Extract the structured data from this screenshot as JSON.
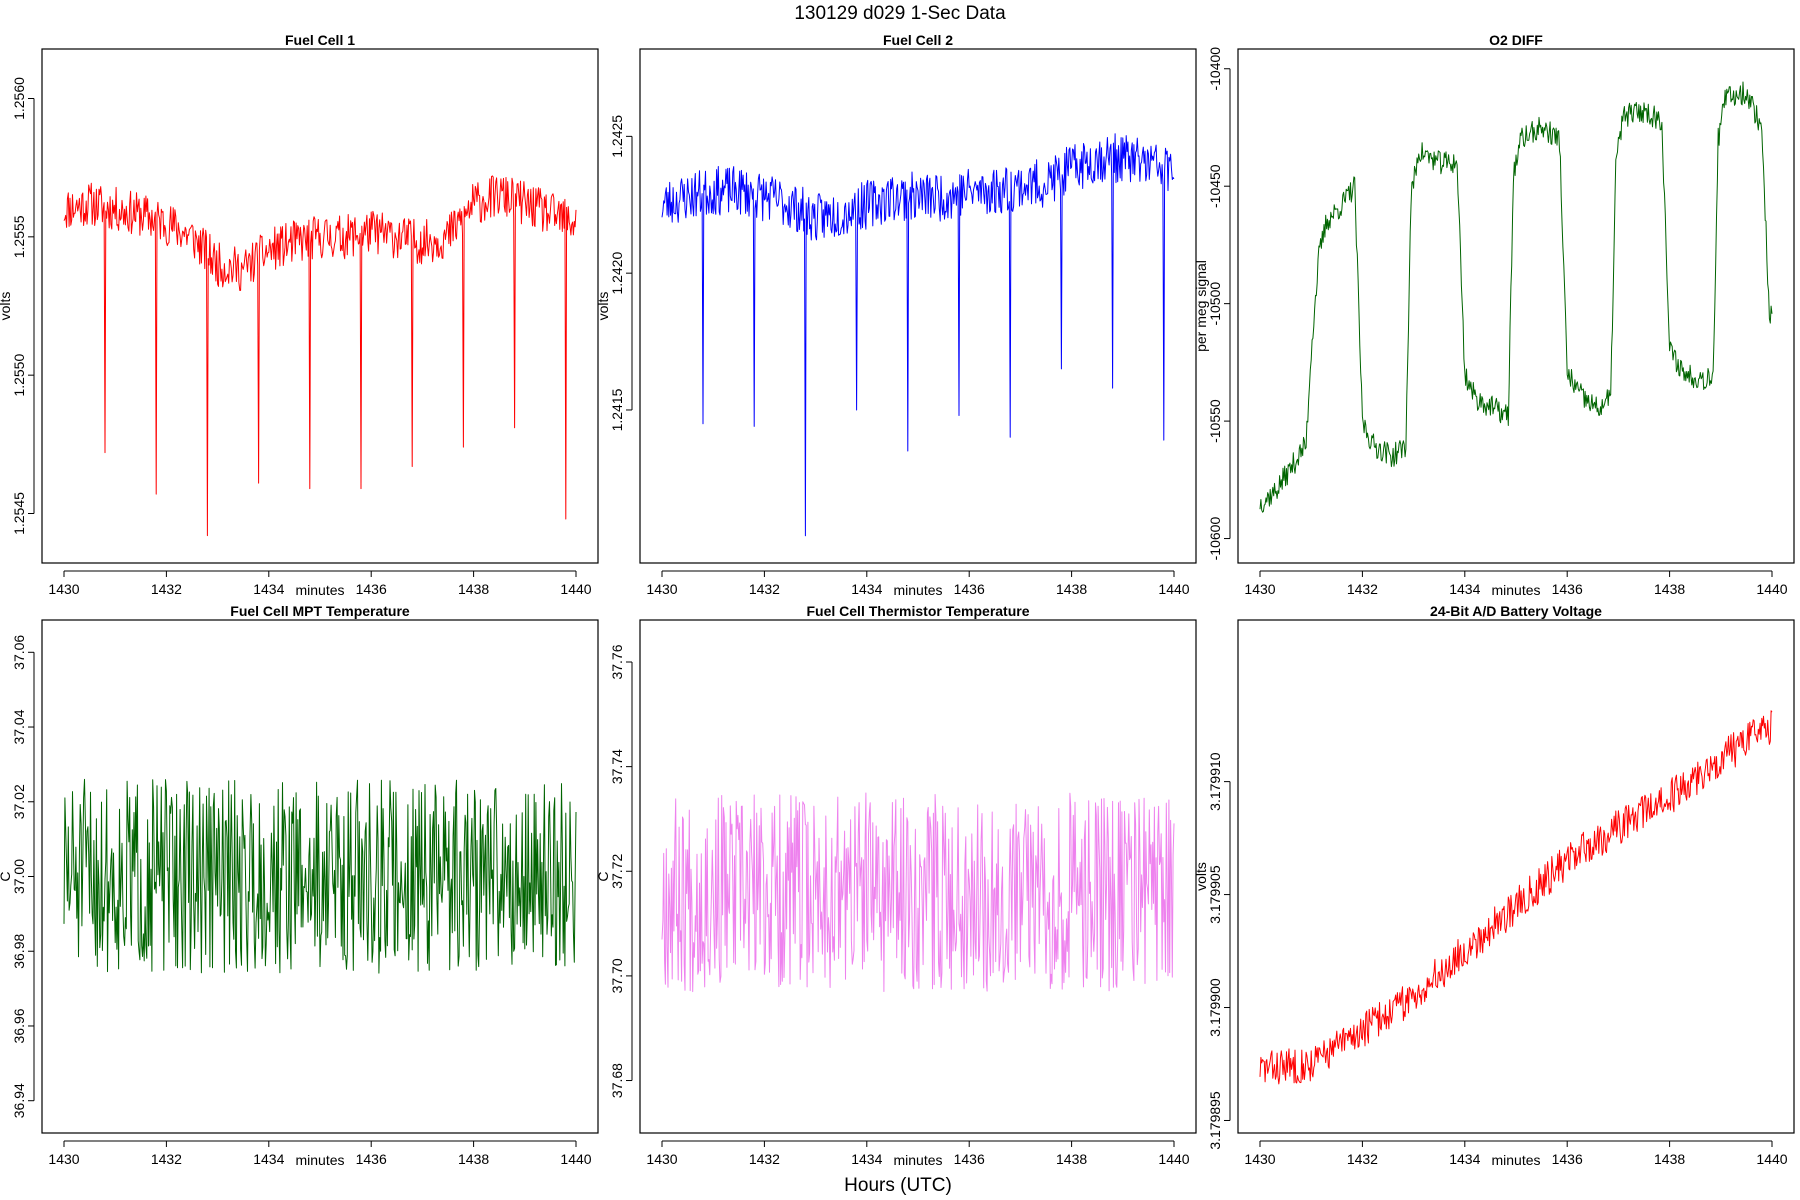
{
  "figure": {
    "title": "130129   d029   1-Sec Data",
    "bottom_label": "Hours (UTC)"
  },
  "chart_data": [
    {
      "id": "fc1",
      "type": "line",
      "title": "Fuel Cell 1",
      "xlabel": "minutes",
      "ylabel": "volts",
      "color": "#ff0000",
      "xlim": [
        1430,
        1440
      ],
      "ylim": [
        1.25435,
        1.25615
      ],
      "xticks": [
        "1430",
        "1432",
        "1434",
        "1436",
        "1438",
        "1440"
      ],
      "xtick_values": [
        1430,
        1432,
        1434,
        1436,
        1438,
        1440
      ],
      "yticks": [
        "1.2545",
        "1.2550",
        "1.2555",
        "1.2560"
      ],
      "ytick_values": [
        1.2545,
        1.255,
        1.2555,
        1.256
      ],
      "x": [
        1430,
        1430.5,
        1431,
        1431.5,
        1432,
        1432.5,
        1433,
        1433.5,
        1434,
        1434.5,
        1435,
        1435.5,
        1436,
        1436.5,
        1437,
        1437.5,
        1438,
        1438.5,
        1439,
        1439.5,
        1440
      ],
      "y": [
        1.2556,
        1.25562,
        1.2556,
        1.25558,
        1.25555,
        1.2555,
        1.2554,
        1.25538,
        1.25545,
        1.25548,
        1.2555,
        1.2555,
        1.25552,
        1.2555,
        1.25548,
        1.2555,
        1.25562,
        1.25565,
        1.25562,
        1.25558,
        1.25555
      ],
      "spikes": [
        {
          "x": 1430.8,
          "y": 1.25472
        },
        {
          "x": 1431.8,
          "y": 1.25457
        },
        {
          "x": 1432.8,
          "y": 1.25442
        },
        {
          "x": 1433.8,
          "y": 1.25461
        },
        {
          "x": 1434.8,
          "y": 1.25459
        },
        {
          "x": 1435.8,
          "y": 1.25459
        },
        {
          "x": 1436.8,
          "y": 1.25467
        },
        {
          "x": 1437.8,
          "y": 1.25474
        },
        {
          "x": 1438.8,
          "y": 1.25481
        },
        {
          "x": 1439.8,
          "y": 1.25448
        }
      ],
      "noise": 8e-05,
      "seed": 11
    },
    {
      "id": "fc2",
      "type": "line",
      "title": "Fuel Cell 2",
      "xlabel": "minutes",
      "ylabel": "volts",
      "color": "#0000ff",
      "xlim": [
        1430,
        1440
      ],
      "ylim": [
        1.24097,
        1.24279
      ],
      "xticks": [
        "1430",
        "1432",
        "1434",
        "1436",
        "1438",
        "1440"
      ],
      "xtick_values": [
        1430,
        1432,
        1434,
        1436,
        1438,
        1440
      ],
      "yticks": [
        "1.2415",
        "1.2420",
        "1.2425"
      ],
      "ytick_values": [
        1.2415,
        1.242,
        1.2425
      ],
      "x": [
        1430,
        1430.5,
        1431,
        1431.5,
        1432,
        1432.5,
        1433,
        1433.5,
        1434,
        1434.5,
        1435,
        1435.5,
        1436,
        1436.5,
        1437,
        1437.5,
        1438,
        1438.5,
        1439,
        1439.5,
        1440
      ],
      "y": [
        1.24225,
        1.24228,
        1.2423,
        1.2423,
        1.24228,
        1.24225,
        1.2422,
        1.24222,
        1.24225,
        1.24228,
        1.24228,
        1.24228,
        1.2423,
        1.2423,
        1.24232,
        1.24233,
        1.24238,
        1.24242,
        1.24242,
        1.2424,
        1.24238
      ],
      "spikes": [
        {
          "x": 1430.8,
          "y": 1.24145
        },
        {
          "x": 1431.8,
          "y": 1.24144
        },
        {
          "x": 1432.8,
          "y": 1.24104
        },
        {
          "x": 1433.8,
          "y": 1.2415
        },
        {
          "x": 1434.8,
          "y": 1.24135
        },
        {
          "x": 1435.8,
          "y": 1.24148
        },
        {
          "x": 1436.8,
          "y": 1.2414
        },
        {
          "x": 1437.8,
          "y": 1.24165
        },
        {
          "x": 1438.8,
          "y": 1.24158
        },
        {
          "x": 1439.8,
          "y": 1.24139
        }
      ],
      "noise": 9e-05,
      "seed": 23
    },
    {
      "id": "o2",
      "type": "line",
      "title": "O2 DIFF",
      "xlabel": "minutes",
      "ylabel": "per meg signal",
      "color": "#006400",
      "xlim": [
        1430,
        1440
      ],
      "ylim": [
        -10607,
        -10395
      ],
      "xticks": [
        "1430",
        "1432",
        "1434",
        "1436",
        "1438",
        "1440"
      ],
      "xtick_values": [
        1430,
        1432,
        1434,
        1436,
        1438,
        1440
      ],
      "yticks": [
        "-10600",
        "-10550",
        "-10500",
        "-10450",
        "-10400"
      ],
      "ytick_values": [
        -10600,
        -10550,
        -10500,
        -10450,
        -10400
      ],
      "x": [
        1430,
        1430.3,
        1430.6,
        1430.9,
        1431.0,
        1431.15,
        1431.3,
        1431.6,
        1431.85,
        1432.0,
        1432.2,
        1432.6,
        1432.85,
        1432.95,
        1433.1,
        1433.5,
        1433.85,
        1434.0,
        1434.2,
        1434.6,
        1434.85,
        1434.95,
        1435.1,
        1435.5,
        1435.85,
        1436.0,
        1436.3,
        1436.6,
        1436.85,
        1436.95,
        1437.1,
        1437.5,
        1437.85,
        1438.0,
        1438.3,
        1438.7,
        1438.85,
        1438.95,
        1439.1,
        1439.5,
        1439.8,
        1439.95
      ],
      "y": [
        -10585,
        -10580,
        -10570,
        -10560,
        -10520,
        -10480,
        -10465,
        -10458,
        -10450,
        -10550,
        -10560,
        -10565,
        -10560,
        -10455,
        -10435,
        -10440,
        -10440,
        -10530,
        -10540,
        -10545,
        -10548,
        -10445,
        -10430,
        -10425,
        -10430,
        -10530,
        -10540,
        -10545,
        -10540,
        -10440,
        -10420,
        -10418,
        -10422,
        -10520,
        -10530,
        -10532,
        -10530,
        -10430,
        -10412,
        -10410,
        -10425,
        -10505
      ],
      "noise": 5,
      "seed": 37
    },
    {
      "id": "mpt",
      "type": "line",
      "title": "Fuel Cell MPT Temperature",
      "xlabel": "minutes",
      "ylabel": "C",
      "color": "#006400",
      "xlim": [
        1430,
        1440
      ],
      "ylim": [
        36.9335,
        37.0665
      ],
      "xticks": [
        "1430",
        "1432",
        "1434",
        "1436",
        "1438",
        "1440"
      ],
      "xtick_values": [
        1430,
        1432,
        1434,
        1436,
        1438,
        1440
      ],
      "yticks": [
        "36.94",
        "36.96",
        "36.98",
        "37.00",
        "37.02",
        "37.04",
        "37.06"
      ],
      "ytick_values": [
        36.94,
        36.96,
        36.98,
        37.0,
        37.02,
        37.04,
        37.06
      ],
      "x": [
        1430,
        1440
      ],
      "y": [
        37.0,
        37.0
      ],
      "noise": 0.026,
      "seed": 51
    },
    {
      "id": "therm",
      "type": "line",
      "title": "Fuel Cell Thermistor Temperature",
      "xlabel": "minutes",
      "ylabel": "C",
      "color": "#ee82ee",
      "xlim": [
        1430,
        1440
      ],
      "ylim": [
        37.6715,
        37.7665
      ],
      "xticks": [
        "1430",
        "1432",
        "1434",
        "1436",
        "1438",
        "1440"
      ],
      "xtick_values": [
        1430,
        1432,
        1434,
        1436,
        1438,
        1440
      ],
      "yticks": [
        "37.68",
        "37.70",
        "37.72",
        "37.74",
        "37.76"
      ],
      "ytick_values": [
        37.68,
        37.7,
        37.72,
        37.74,
        37.76
      ],
      "x": [
        1430,
        1440
      ],
      "y": [
        37.716,
        37.716
      ],
      "noise": 0.019,
      "seed": 67
    },
    {
      "id": "batt",
      "type": "line",
      "title": "24-Bit A/D Battery Voltage",
      "xlabel": "minutes",
      "ylabel": "volts",
      "color": "#ff0000",
      "xlim": [
        1430,
        1440
      ],
      "ylim": [
        3.1798948,
        3.1799168
      ],
      "xticks": [
        "1430",
        "1432",
        "1434",
        "1436",
        "1438",
        "1440"
      ],
      "xtick_values": [
        1430,
        1432,
        1434,
        1436,
        1438,
        1440
      ],
      "yticks": [
        "3.179895",
        "3.179900",
        "3.179905",
        "3.179910"
      ],
      "ytick_values": [
        3.179895,
        3.1799,
        3.179905,
        3.17991
      ],
      "x": [
        1430,
        1431,
        1432,
        1433,
        1434,
        1435,
        1436,
        1437,
        1438,
        1439,
        1440
      ],
      "y": [
        3.1798973,
        3.1798975,
        3.179899,
        3.1799005,
        3.1799025,
        3.1799045,
        3.1799065,
        3.179908,
        3.1799093,
        3.179911,
        3.1799125
      ],
      "noise": 8e-07,
      "seed": 83
    }
  ]
}
